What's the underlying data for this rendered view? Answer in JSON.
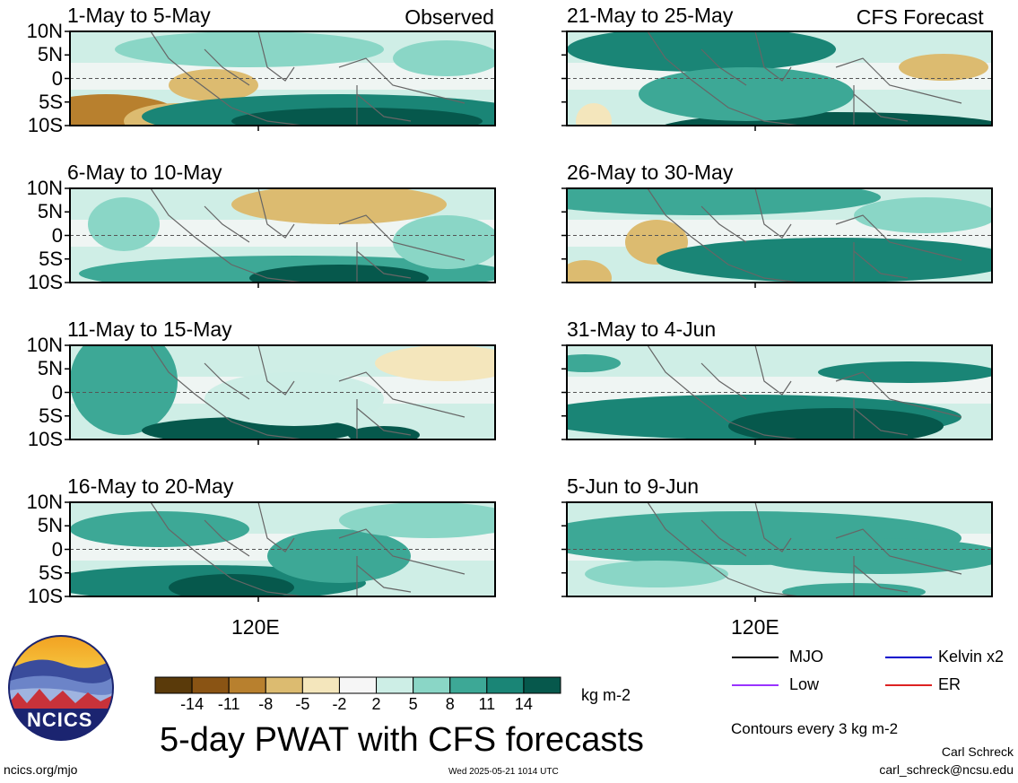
{
  "chart_data": {
    "type": "heatmap",
    "title": "5-day PWAT with CFS forecasts",
    "units": "kg m-2",
    "y_ticks": [
      "10N",
      "5N",
      "0",
      "5S",
      "10S"
    ],
    "x_ticks": [
      "120E"
    ],
    "panels": [
      {
        "period": "1-May to 5-May",
        "tag": "Observed"
      },
      {
        "period": "6-May to 10-May",
        "tag": ""
      },
      {
        "period": "11-May to 15-May",
        "tag": ""
      },
      {
        "period": "16-May to 20-May",
        "tag": ""
      },
      {
        "period": "21-May to 25-May",
        "tag": "CFS Forecast"
      },
      {
        "period": "26-May to 30-May",
        "tag": ""
      },
      {
        "period": "31-May to 4-Jun",
        "tag": ""
      },
      {
        "period": "5-Jun to 9-Jun",
        "tag": ""
      }
    ],
    "colorbar": {
      "ticks": [
        "-14",
        "-11",
        "-8",
        "-5",
        "-2",
        "2",
        "5",
        "8",
        "11",
        "14"
      ],
      "colors": [
        "#5a3a0a",
        "#8a5414",
        "#b8802e",
        "#dcbb70",
        "#f4e6bc",
        "#f6f6f6",
        "#cdeee6",
        "#8ad6c6",
        "#3da896",
        "#1a8576",
        "#06584c"
      ]
    },
    "legend": [
      {
        "label": "MJO",
        "color": "#000000"
      },
      {
        "label": "Kelvin x2",
        "color": "#0000cc"
      },
      {
        "label": "Low",
        "color": "#9933ff"
      },
      {
        "label": "ER",
        "color": "#dd2222"
      }
    ],
    "contour_note": "Contours every 3 kg m-2"
  },
  "footer": {
    "left": "ncics.org/mjo",
    "center": "Wed 2025-05-21 1014 UTC",
    "author": "Carl Schreck",
    "email": "carl_schreck@ncsu.edu",
    "logo_text": "NCICS"
  }
}
